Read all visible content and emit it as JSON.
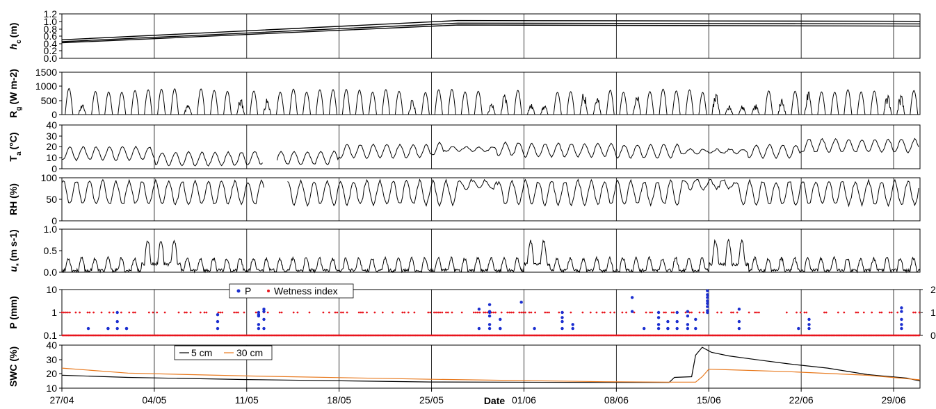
{
  "chart_data": {
    "type": "line",
    "x_dates": [
      "27/04",
      "04/05",
      "11/05",
      "18/05",
      "25/05",
      "01/06",
      "08/06",
      "15/06",
      "22/06",
      "29/06"
    ],
    "xlabel": "Date",
    "x_range_days": [
      0,
      65
    ],
    "panels": [
      {
        "id": "hc",
        "ylabel_main": "h",
        "ylabel_sub": "c",
        "ylabel_unit": "(m)",
        "yticks": [
          "1.2",
          "1.0",
          "0.8",
          "0.6",
          "0.4",
          "0.2",
          "0.0"
        ],
        "ylim": [
          0,
          1.2
        ],
        "series": [
          {
            "values_start": 0.5,
            "values_peak": 1.02,
            "values_end": 1.0
          },
          {
            "values_start": 0.45,
            "values_peak": 0.95,
            "values_end": 0.93
          },
          {
            "values_start": 0.42,
            "values_peak": 0.9,
            "values_end": 0.87
          }
        ]
      },
      {
        "id": "rg",
        "ylabel_main": "R",
        "ylabel_sub": "g",
        "ylabel_unit": "(W m-2)",
        "yticks": [
          "1500",
          "1000",
          "500",
          "0"
        ],
        "ylim": [
          0,
          1500
        ],
        "daily_peak": 850
      },
      {
        "id": "ta",
        "ylabel_main": "T",
        "ylabel_sub": "a",
        "ylabel_unit": "(°C)",
        "yticks": [
          "40",
          "30",
          "20",
          "10",
          "0"
        ],
        "ylim": [
          0,
          40
        ]
      },
      {
        "id": "rh",
        "ylabel_main": "RH (%)",
        "yticks": [
          "100",
          "50",
          "0"
        ],
        "ylim": [
          0,
          100
        ]
      },
      {
        "id": "ustar",
        "ylabel_main": "u",
        "ylabel_sub": "*",
        "ylabel_unit": "(m s-1)",
        "yticks": [
          "1.0",
          "0.5",
          "0.0"
        ],
        "ylim": [
          0,
          1.0
        ]
      },
      {
        "id": "p",
        "ylabel_main": "P (mm)",
        "yticks": [
          "10",
          "1",
          "0.1"
        ],
        "yticks_right": [
          "2",
          "1",
          "0"
        ],
        "log_scale": true,
        "ylim": [
          0.1,
          10
        ],
        "legend": [
          {
            "label": "P",
            "color": "#1c2fd0"
          },
          {
            "label": "Wetness index",
            "color": "#e8141c"
          }
        ],
        "p_events": [
          {
            "day": 2.0,
            "values": [
              0.2
            ]
          },
          {
            "day": 3.5,
            "values": [
              0.2,
              0.2
            ]
          },
          {
            "day": 4.2,
            "values": [
              0.2,
              0.4,
              1.0
            ]
          },
          {
            "day": 4.9,
            "values": [
              0.2,
              0.2
            ]
          },
          {
            "day": 11.8,
            "values": [
              0.2,
              0.4,
              0.8
            ]
          },
          {
            "day": 14.9,
            "values": [
              0.2,
              0.3,
              0.7,
              1.0,
              0.8
            ]
          },
          {
            "day": 15.3,
            "values": [
              0.2,
              0.5,
              1.1,
              1.4
            ]
          },
          {
            "day": 31.6,
            "values": [
              0.2,
              1.4
            ]
          },
          {
            "day": 32.4,
            "values": [
              0.2,
              0.3,
              0.7,
              1.0,
              1.1,
              2.2
            ]
          },
          {
            "day": 33.2,
            "values": [
              0.2,
              0.2,
              0.5
            ]
          },
          {
            "day": 34.8,
            "values": [
              2.8
            ]
          },
          {
            "day": 35.8,
            "values": [
              0.2
            ]
          },
          {
            "day": 37.9,
            "values": [
              0.2,
              0.4,
              0.6,
              1.0
            ]
          },
          {
            "day": 38.7,
            "values": [
              0.2,
              0.3
            ]
          },
          {
            "day": 43.2,
            "values": [
              4.5,
              1.1
            ]
          },
          {
            "day": 44.1,
            "values": [
              0.2
            ]
          },
          {
            "day": 45.2,
            "values": [
              0.2,
              0.3,
              0.6,
              1.0
            ]
          },
          {
            "day": 45.9,
            "values": [
              0.2,
              0.2,
              0.4
            ]
          },
          {
            "day": 46.6,
            "values": [
              0.2,
              0.4,
              1.0
            ]
          },
          {
            "day": 47.4,
            "values": [
              0.2,
              0.3,
              0.7,
              1.1
            ]
          },
          {
            "day": 48.0,
            "values": [
              0.2,
              0.5
            ]
          },
          {
            "day": 48.9,
            "values": [
              1.2,
              1.8,
              2.5,
              3.2,
              4.5,
              6.0,
              8.8,
              1.0
            ]
          },
          {
            "day": 51.3,
            "values": [
              0.2,
              0.4,
              1.4
            ]
          },
          {
            "day": 55.8,
            "values": [
              0.2
            ]
          },
          {
            "day": 56.6,
            "values": [
              0.2,
              0.3,
              0.5
            ]
          },
          {
            "day": 63.6,
            "values": [
              0.2,
              0.3,
              0.5,
              1.1,
              1.6
            ]
          }
        ]
      },
      {
        "id": "swc",
        "ylabel_main": "SWC (%)",
        "yticks": [
          "40",
          "30",
          "20",
          "10"
        ],
        "ylim": [
          10,
          40
        ],
        "legend": [
          {
            "label": "5 cm",
            "color": "#000000"
          },
          {
            "label": "30 cm",
            "color": "#e8781c"
          }
        ],
        "series": [
          {
            "name": "5 cm",
            "values": [
              [
                0,
                19
              ],
              [
                5,
                17.5
              ],
              [
                14,
                16
              ],
              [
                28,
                14.3
              ],
              [
                41,
                14.0
              ],
              [
                46,
                14.0
              ],
              [
                46.4,
                17.5
              ],
              [
                47.7,
                18
              ],
              [
                48.0,
                33
              ],
              [
                48.5,
                38.5
              ],
              [
                49.2,
                35
              ],
              [
                50.5,
                32.5
              ],
              [
                52.5,
                30
              ],
              [
                55,
                27
              ],
              [
                58,
                24
              ],
              [
                61,
                19.5
              ],
              [
                64,
                17
              ],
              [
                65,
                15
              ]
            ]
          },
          {
            "name": "30 cm",
            "values": [
              [
                0,
                24
              ],
              [
                5,
                20.5
              ],
              [
                14,
                18.5
              ],
              [
                28,
                16.2
              ],
              [
                41,
                14.5
              ],
              [
                46,
                14.2
              ],
              [
                48.0,
                14.2
              ],
              [
                48.5,
                18
              ],
              [
                49.0,
                23.2
              ],
              [
                50.5,
                22.8
              ],
              [
                55,
                21.5
              ],
              [
                61,
                19
              ],
              [
                65,
                15.8
              ]
            ]
          }
        ]
      }
    ]
  }
}
